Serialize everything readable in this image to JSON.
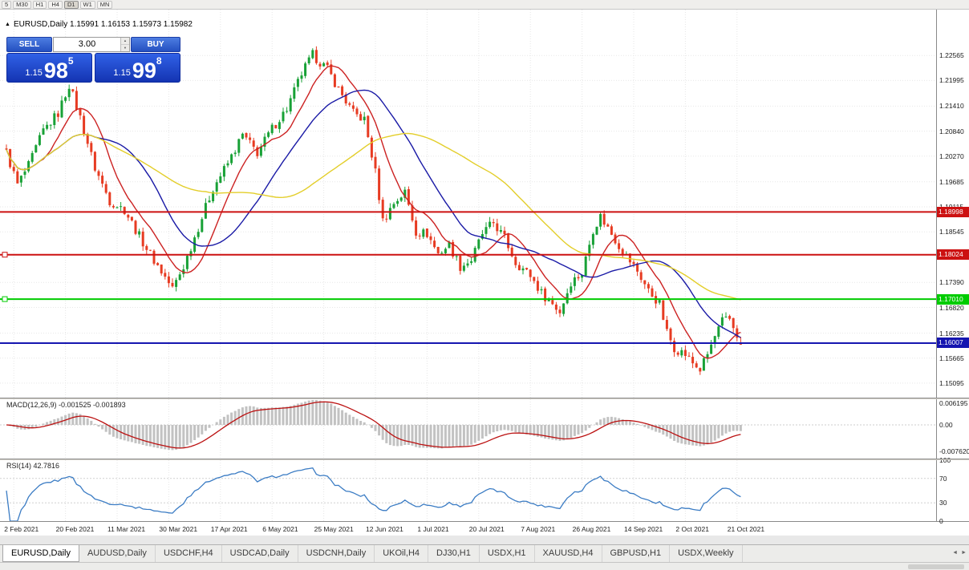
{
  "toolbar": {
    "timeframes": [
      "5",
      "M30",
      "H1",
      "H4",
      "D1",
      "W1",
      "MN"
    ],
    "active": "D1"
  },
  "chart": {
    "title": "EURUSD,Daily 1.15991 1.16153 1.15973 1.15982"
  },
  "icons": {
    "chart_marker": "▲",
    "spin_up": "▲",
    "spin_down": "▼",
    "scroll_left": "◄",
    "scroll_right": "►"
  },
  "trade_panel": {
    "sell_label": "SELL",
    "buy_label": "BUY",
    "lot_size": "3.00",
    "bid_small": "1.15",
    "bid_big": "98",
    "bid_sup": "5",
    "ask_small": "1.15",
    "ask_big": "99",
    "ask_sup": "8"
  },
  "price_axis": {
    "labels": [
      "1.22565",
      "1.21995",
      "1.21410",
      "1.20840",
      "1.20270",
      "1.19685",
      "1.19115",
      "1.18545",
      "1.17390",
      "1.16820",
      "1.16235",
      "1.15665",
      "1.15095"
    ]
  },
  "hlines": [
    {
      "price": 1.18998,
      "tag": "1.18998",
      "color": "#cc1111",
      "handles": false
    },
    {
      "price": 1.18024,
      "tag": "1.18024",
      "color": "#cc1111",
      "handles": true
    },
    {
      "price": 1.1701,
      "tag": "1.17010",
      "color": "#00cc00",
      "handles": true
    },
    {
      "price": 1.16007,
      "tag": "1.16007",
      "color": "#1515b0",
      "handles": false
    }
  ],
  "macd": {
    "label": "MACD(12,26,9) -0.001525 -0.001893",
    "axis": [
      "0.006195",
      "0.00",
      "-0.007620"
    ]
  },
  "rsi": {
    "label": "RSI(14) 42.7816",
    "axis": [
      "100",
      "70",
      "30",
      "0"
    ]
  },
  "date_axis": {
    "dates": [
      "2 Feb 2021",
      "20 Feb 2021",
      "11 Mar 2021",
      "30 Mar 2021",
      "17 Apr 2021",
      "6 May 2021",
      "25 May 2021",
      "12 Jun 2021",
      "1 Jul 2021",
      "20 Jul 2021",
      "7 Aug 2021",
      "26 Aug 2021",
      "14 Sep 2021",
      "2 Oct 2021",
      "21 Oct 2021"
    ],
    "first_index": 2,
    "step": 14
  },
  "tabs": [
    {
      "label": "EURUSD,Daily",
      "active": true
    },
    {
      "label": "AUDUSD,Daily",
      "active": false
    },
    {
      "label": "USDCHF,H4",
      "active": false
    },
    {
      "label": "USDCAD,Daily",
      "active": false
    },
    {
      "label": "USDCNH,Daily",
      "active": false
    },
    {
      "label": "UKOil,H4",
      "active": false
    },
    {
      "label": "DJ30,H1",
      "active": false
    },
    {
      "label": "USDX,H1",
      "active": false
    },
    {
      "label": "XAUUSD,H4",
      "active": false
    },
    {
      "label": "GBPUSD,H1",
      "active": false
    },
    {
      "label": "USDX,Weekly",
      "active": false
    }
  ],
  "chart_data": {
    "type": "candlestick",
    "symbol": "EURUSD",
    "period": "Daily",
    "last_candle": {
      "open": 1.15991,
      "high": 1.16153,
      "low": 1.15973,
      "close": 1.15982
    },
    "n_candles": 200,
    "price_range": {
      "top": 1.231,
      "bottom": 1.148
    },
    "anchors": [
      [
        0,
        1.2035
      ],
      [
        3,
        1.1962
      ],
      [
        6,
        1.2005
      ],
      [
        10,
        1.2085
      ],
      [
        14,
        1.2125
      ],
      [
        17,
        1.219
      ],
      [
        20,
        1.2115
      ],
      [
        24,
        1.2
      ],
      [
        28,
        1.1925
      ],
      [
        32,
        1.1905
      ],
      [
        36,
        1.1845
      ],
      [
        40,
        1.179
      ],
      [
        45,
        1.1725
      ],
      [
        48,
        1.1775
      ],
      [
        52,
        1.1865
      ],
      [
        56,
        1.1955
      ],
      [
        60,
        1.201
      ],
      [
        64,
        1.2075
      ],
      [
        68,
        1.2035
      ],
      [
        72,
        1.209
      ],
      [
        76,
        1.2135
      ],
      [
        80,
        1.2215
      ],
      [
        83,
        1.2258
      ],
      [
        87,
        1.2225
      ],
      [
        90,
        1.218
      ],
      [
        94,
        1.2125
      ],
      [
        97,
        1.211
      ],
      [
        100,
        1.199
      ],
      [
        102,
        1.188
      ],
      [
        105,
        1.192
      ],
      [
        108,
        1.1945
      ],
      [
        111,
        1.1855
      ],
      [
        114,
        1.185
      ],
      [
        117,
        1.1805
      ],
      [
        120,
        1.1825
      ],
      [
        123,
        1.1775
      ],
      [
        126,
        1.179
      ],
      [
        129,
        1.185
      ],
      [
        132,
        1.1875
      ],
      [
        135,
        1.184
      ],
      [
        138,
        1.1785
      ],
      [
        142,
        1.1755
      ],
      [
        145,
        1.1715
      ],
      [
        148,
        1.169
      ],
      [
        150,
        1.1672
      ],
      [
        153,
        1.174
      ],
      [
        156,
        1.176
      ],
      [
        159,
        1.186
      ],
      [
        161,
        1.189
      ],
      [
        164,
        1.185
      ],
      [
        167,
        1.181
      ],
      [
        171,
        1.1765
      ],
      [
        174,
        1.172
      ],
      [
        177,
        1.169
      ],
      [
        179,
        1.1625
      ],
      [
        181,
        1.159
      ],
      [
        184,
        1.1575
      ],
      [
        186,
        1.1555
      ],
      [
        188,
        1.154
      ],
      [
        190,
        1.1575
      ],
      [
        192,
        1.1615
      ],
      [
        194,
        1.165
      ],
      [
        196,
        1.1655
      ],
      [
        198,
        1.162
      ],
      [
        199,
        1.1598
      ]
    ],
    "candle_colors": {
      "up": "#18a136",
      "down": "#e73b22"
    },
    "moving_averages": [
      {
        "period": 10,
        "color": "#cc2222"
      },
      {
        "period": 25,
        "color": "#1a1aa6"
      },
      {
        "period": 55,
        "color": "#e3ce2a"
      }
    ],
    "macd_settings": {
      "fast": 12,
      "slow": 26,
      "signal": 9,
      "histogram_color": "#c2c2c2",
      "signal_color": "#bb1111"
    },
    "rsi_settings": {
      "period": 14,
      "color": "#3b7cc4",
      "levels": [
        30,
        70
      ]
    }
  }
}
